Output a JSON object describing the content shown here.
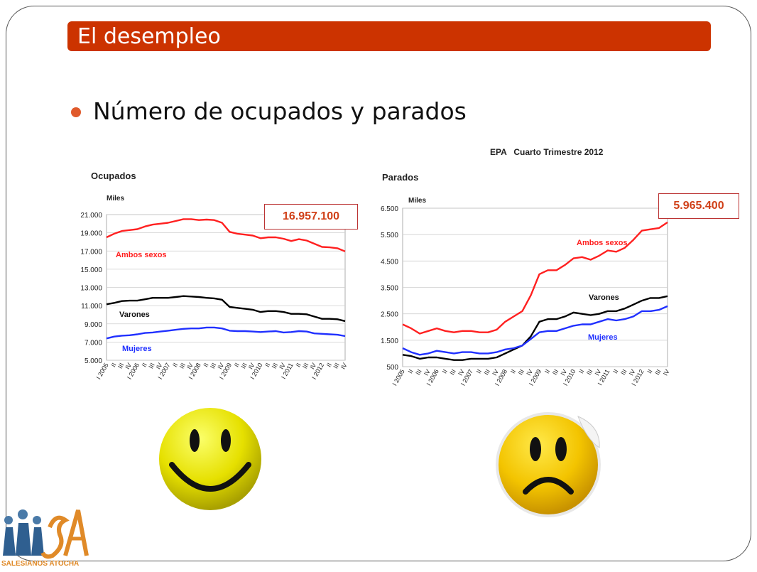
{
  "slide": {
    "title": "El desempleo",
    "bullet": "Número de ocupados y parados",
    "epa_header": "EPA   Cuarto Trimestre 2012",
    "callout_ocupados": "16.957.100",
    "callout_parados": "5.965.400",
    "logo_text": "SALESIANOS ATOCHA",
    "colors": {
      "title_bg": "#cc3300",
      "accent": "#e05a2b",
      "red": "#ff2020",
      "black": "#000000",
      "blue": "#2030ff"
    }
  },
  "chart_data": [
    {
      "type": "line",
      "title": "Ocupados",
      "unit_label": "Miles",
      "ylim": [
        5000,
        21000
      ],
      "yticks": [
        "5.000",
        "7.000",
        "9.000",
        "11.000",
        "13.000",
        "15.000",
        "17.000",
        "19.000",
        "21.000"
      ],
      "xticks": [
        "I 2005",
        "II",
        "III",
        "IV",
        "I 2006",
        "II",
        "III",
        "IV",
        "I 2007",
        "II",
        "III",
        "IV",
        "I 2008",
        "II",
        "III",
        "IV",
        "I 2009",
        "II",
        "III",
        "IV",
        "I 2010",
        "II",
        "III",
        "IV",
        "I 2011",
        "II",
        "III",
        "IV",
        "I 2012",
        "II",
        "III",
        "IV"
      ],
      "grid": true,
      "series": [
        {
          "name": "Ambos sexos",
          "color": "#ff2020",
          "values": [
            18500,
            18900,
            19200,
            19300,
            19400,
            19700,
            19900,
            20000,
            20100,
            20300,
            20500,
            20500,
            20400,
            20450,
            20400,
            20100,
            19100,
            18900,
            18800,
            18700,
            18400,
            18500,
            18500,
            18350,
            18100,
            18300,
            18150,
            17800,
            17450,
            17400,
            17300,
            16957
          ]
        },
        {
          "name": "Varones",
          "color": "#000000",
          "values": [
            11150,
            11300,
            11500,
            11550,
            11550,
            11700,
            11850,
            11850,
            11850,
            11950,
            12050,
            12000,
            11950,
            11850,
            11800,
            11650,
            10850,
            10750,
            10650,
            10550,
            10300,
            10400,
            10400,
            10300,
            10100,
            10100,
            10050,
            9800,
            9550,
            9550,
            9500,
            9300
          ]
        },
        {
          "name": "Mujeres",
          "color": "#2030ff",
          "values": [
            7400,
            7600,
            7700,
            7750,
            7850,
            8000,
            8050,
            8150,
            8250,
            8350,
            8450,
            8500,
            8500,
            8600,
            8600,
            8500,
            8250,
            8200,
            8200,
            8150,
            8100,
            8150,
            8200,
            8050,
            8100,
            8200,
            8150,
            7950,
            7900,
            7850,
            7800,
            7650
          ]
        }
      ]
    },
    {
      "type": "line",
      "title": "Parados",
      "unit_label": "Miles",
      "ylim": [
        500,
        6500
      ],
      "yticks": [
        "500",
        "1.500",
        "2.500",
        "3.500",
        "4.500",
        "5.500",
        "6.500"
      ],
      "xticks": [
        "I 2005",
        "II",
        "III",
        "IV",
        "I 2006",
        "II",
        "III",
        "IV",
        "I 2007",
        "II",
        "III",
        "IV",
        "I 2008",
        "II",
        "III",
        "IV",
        "I 2009",
        "II",
        "III",
        "IV",
        "I 2010",
        "II",
        "III",
        "IV",
        "I 2011",
        "II",
        "III",
        "IV",
        "I 2012",
        "II",
        "III",
        "IV"
      ],
      "grid": true,
      "series": [
        {
          "name": "Ambos sexos",
          "color": "#ff2020",
          "values": [
            2100,
            1950,
            1750,
            1850,
            1950,
            1850,
            1800,
            1850,
            1850,
            1800,
            1800,
            1900,
            2200,
            2400,
            2600,
            3200,
            4000,
            4150,
            4150,
            4350,
            4600,
            4650,
            4550,
            4700,
            4900,
            4850,
            5000,
            5300,
            5650,
            5700,
            5750,
            5965
          ]
        },
        {
          "name": "Varones",
          "color": "#000000",
          "values": [
            950,
            900,
            800,
            850,
            850,
            800,
            750,
            750,
            800,
            800,
            800,
            850,
            1000,
            1150,
            1300,
            1650,
            2200,
            2300,
            2300,
            2400,
            2550,
            2500,
            2450,
            2500,
            2600,
            2600,
            2700,
            2850,
            3000,
            3100,
            3100,
            3170
          ]
        },
        {
          "name": "Mujeres",
          "color": "#2030ff",
          "values": [
            1200,
            1050,
            950,
            1000,
            1100,
            1050,
            1000,
            1050,
            1050,
            1000,
            1000,
            1050,
            1150,
            1200,
            1300,
            1550,
            1800,
            1850,
            1850,
            1950,
            2050,
            2100,
            2100,
            2200,
            2300,
            2250,
            2300,
            2400,
            2600,
            2600,
            2650,
            2790
          ]
        }
      ]
    }
  ]
}
